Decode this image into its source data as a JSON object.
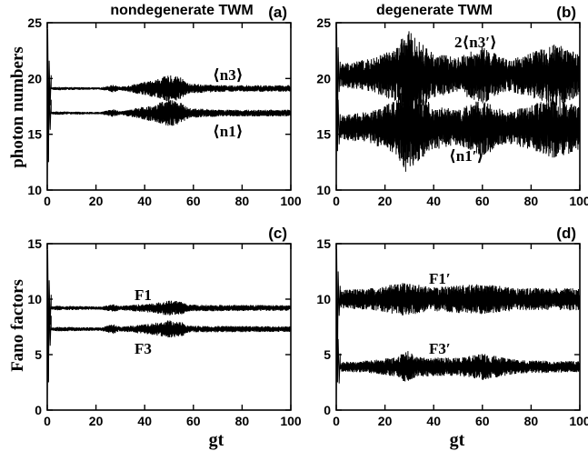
{
  "figure": {
    "ylabel_top": "photon numbers",
    "ylabel_bottom": "Fano factors",
    "xlabel": "gt"
  },
  "chart_data": [
    {
      "id": "a",
      "type": "line",
      "title": "nondegenerate  TWM",
      "panel_label": "(a)",
      "xlabel": "",
      "ylabel": "photon numbers",
      "xlim": [
        0,
        100
      ],
      "ylim": [
        10,
        25
      ],
      "xticks": [
        0,
        20,
        40,
        60,
        80,
        100
      ],
      "yticks": [
        10,
        15,
        20,
        25
      ],
      "grid": false,
      "series": [
        {
          "name": "⟨n3⟩",
          "mean": 19.1,
          "initial": 10.5,
          "envelope": [
            [
              0,
              0.1
            ],
            [
              4,
              0.15
            ],
            [
              22,
              0.1
            ],
            [
              27,
              0.35
            ],
            [
              30,
              0.15
            ],
            [
              44,
              0.8
            ],
            [
              50,
              1.2
            ],
            [
              55,
              1.0
            ],
            [
              58,
              0.45
            ],
            [
              72,
              0.3
            ],
            [
              100,
              0.3
            ]
          ]
        },
        {
          "name": "⟨n1⟩",
          "mean": 16.9,
          "initial": 10.5,
          "envelope": [
            [
              0,
              0.1
            ],
            [
              4,
              0.15
            ],
            [
              22,
              0.1
            ],
            [
              27,
              0.35
            ],
            [
              30,
              0.15
            ],
            [
              44,
              0.8
            ],
            [
              50,
              1.2
            ],
            [
              55,
              1.0
            ],
            [
              58,
              0.45
            ],
            [
              72,
              0.3
            ],
            [
              100,
              0.3
            ]
          ]
        }
      ],
      "annotations": [
        "⟨n3⟩",
        "⟨n1⟩"
      ]
    },
    {
      "id": "b",
      "type": "line",
      "title": "degenerate  TWM",
      "panel_label": "(b)",
      "xlabel": "",
      "ylabel": "",
      "xlim": [
        0,
        100
      ],
      "ylim": [
        10,
        25
      ],
      "xticks": [
        0,
        20,
        40,
        60,
        80,
        100
      ],
      "yticks": [
        10,
        15,
        20,
        25
      ],
      "grid": false,
      "series": [
        {
          "name": "2⟨n3′⟩",
          "mean": 20.3,
          "initial": 11.5,
          "envelope": [
            [
              0,
              1.0
            ],
            [
              15,
              1.5
            ],
            [
              25,
              2.5
            ],
            [
              29,
              4.2
            ],
            [
              33,
              3.2
            ],
            [
              40,
              2.0
            ],
            [
              50,
              1.6
            ],
            [
              60,
              2.6
            ],
            [
              70,
              1.4
            ],
            [
              80,
              2.0
            ],
            [
              90,
              2.8
            ],
            [
              100,
              2.0
            ]
          ]
        },
        {
          "name": "⟨n1′⟩",
          "mean": 15.6,
          "initial": 11.5,
          "envelope": [
            [
              0,
              1.0
            ],
            [
              15,
              1.5
            ],
            [
              25,
              2.5
            ],
            [
              29,
              4.2
            ],
            [
              33,
              3.2
            ],
            [
              40,
              2.0
            ],
            [
              50,
              1.6
            ],
            [
              60,
              2.6
            ],
            [
              70,
              1.4
            ],
            [
              80,
              2.0
            ],
            [
              90,
              2.8
            ],
            [
              100,
              2.0
            ]
          ]
        }
      ],
      "annotations": [
        "2⟨n3′⟩",
        "⟨n1′⟩"
      ]
    },
    {
      "id": "c",
      "type": "line",
      "title": "",
      "panel_label": "(c)",
      "xlabel": "gt",
      "ylabel": "Fano factors",
      "xlim": [
        0,
        100
      ],
      "ylim": [
        0,
        15
      ],
      "xticks": [
        0,
        20,
        40,
        60,
        80,
        100
      ],
      "yticks": [
        0,
        5,
        10,
        15
      ],
      "grid": false,
      "series": [
        {
          "name": "F1",
          "mean": 9.2,
          "initial": 0.5,
          "envelope": [
            [
              0,
              0.1
            ],
            [
              4,
              0.2
            ],
            [
              22,
              0.15
            ],
            [
              27,
              0.35
            ],
            [
              30,
              0.2
            ],
            [
              44,
              0.45
            ],
            [
              50,
              0.7
            ],
            [
              55,
              0.6
            ],
            [
              58,
              0.3
            ],
            [
              100,
              0.25
            ]
          ]
        },
        {
          "name": "F3",
          "mean": 7.3,
          "initial": 0.5,
          "envelope": [
            [
              0,
              0.1
            ],
            [
              4,
              0.2
            ],
            [
              22,
              0.15
            ],
            [
              27,
              0.45
            ],
            [
              30,
              0.2
            ],
            [
              44,
              0.55
            ],
            [
              50,
              0.8
            ],
            [
              55,
              0.7
            ],
            [
              58,
              0.3
            ],
            [
              100,
              0.25
            ]
          ]
        }
      ],
      "annotations": [
        "F1",
        "F3"
      ]
    },
    {
      "id": "d",
      "type": "line",
      "title": "",
      "panel_label": "(d)",
      "xlabel": "gt",
      "ylabel": "",
      "xlim": [
        0,
        100
      ],
      "ylim": [
        0,
        15
      ],
      "xticks": [
        0,
        20,
        40,
        60,
        80,
        100
      ],
      "yticks": [
        0,
        5,
        10,
        15
      ],
      "grid": false,
      "series": [
        {
          "name": "F1′",
          "mean": 10.0,
          "initial": 0.5,
          "envelope": [
            [
              0,
              0.8
            ],
            [
              15,
              1.0
            ],
            [
              28,
              1.5
            ],
            [
              40,
              1.1
            ],
            [
              60,
              1.4
            ],
            [
              75,
              1.0
            ],
            [
              100,
              1.0
            ]
          ]
        },
        {
          "name": "F3′",
          "mean": 3.9,
          "initial": 0.5,
          "envelope": [
            [
              0,
              0.4
            ],
            [
              15,
              0.6
            ],
            [
              25,
              0.9
            ],
            [
              29,
              1.5
            ],
            [
              33,
              0.9
            ],
            [
              50,
              0.8
            ],
            [
              60,
              1.2
            ],
            [
              75,
              0.6
            ],
            [
              100,
              0.5
            ]
          ]
        }
      ],
      "annotations": [
        "F1′",
        "F3′"
      ]
    }
  ]
}
